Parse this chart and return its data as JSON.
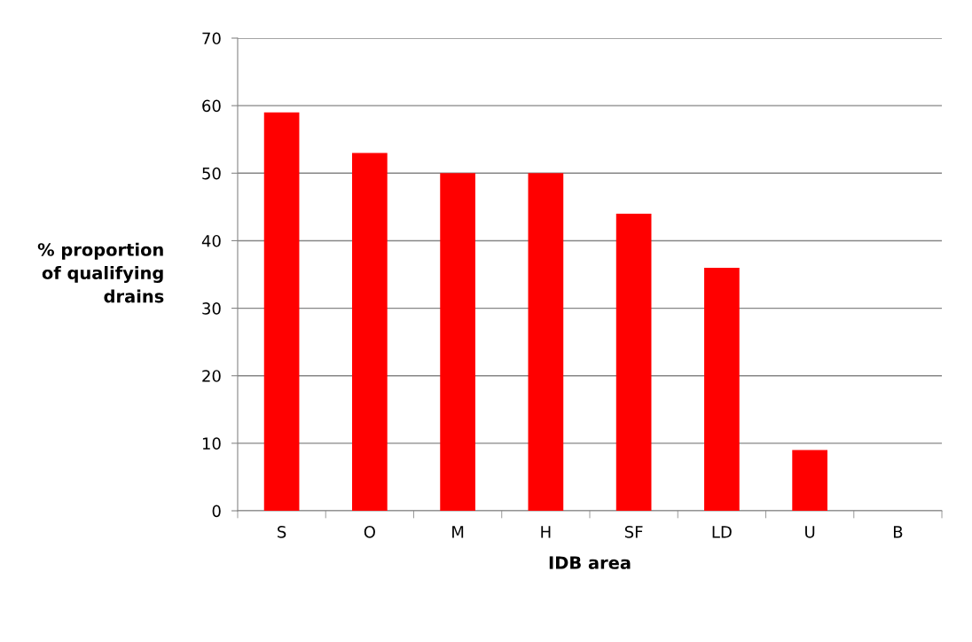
{
  "chart_data": {
    "type": "bar",
    "xlabel": "IDB area",
    "ylabel": "% proportion\nof qualifying\ndrains",
    "categories": [
      "S",
      "O",
      "M",
      "H",
      "SF",
      "LD",
      "U",
      "B"
    ],
    "values": [
      59,
      53,
      50,
      50,
      44,
      36,
      9,
      0
    ],
    "color": "#ff0000",
    "ylim": [
      0,
      70
    ],
    "yticks": [
      0,
      10,
      20,
      30,
      40,
      50,
      60,
      70
    ],
    "grid": "y",
    "legend": false
  }
}
